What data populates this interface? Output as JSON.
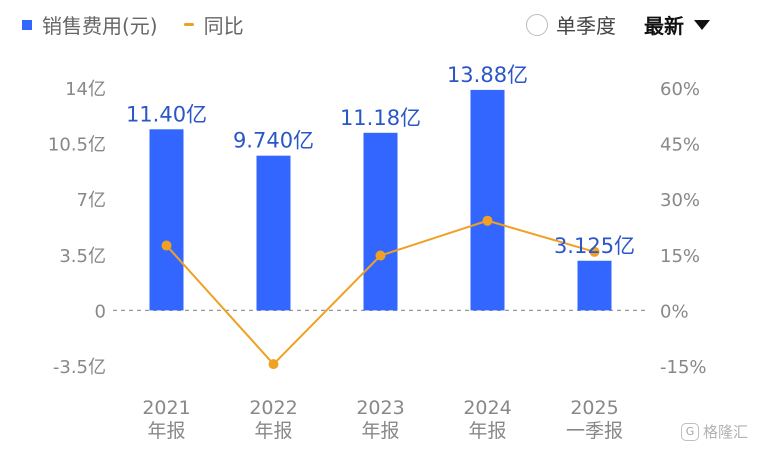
{
  "legend": {
    "bar_label": "销售费用(元)",
    "line_label": "同比"
  },
  "controls": {
    "option_label": "单季度",
    "select_value": "最新"
  },
  "watermark": {
    "logo_char": "G",
    "text": "格隆汇"
  },
  "colors": {
    "bar": "#3366ff",
    "line": "#f0a022",
    "bar_label": "#2a57c7",
    "axis_text": "#888888",
    "zero_line": "#999999"
  },
  "chart_data": {
    "type": "bar",
    "categories": [
      [
        "2021",
        "年报"
      ],
      [
        "2022",
        "年报"
      ],
      [
        "2023",
        "年报"
      ],
      [
        "2024",
        "年报"
      ],
      [
        "2025",
        "一季报"
      ]
    ],
    "series": [
      {
        "name": "销售费用(元)",
        "type": "bar",
        "axis": "left",
        "values": [
          11.4,
          9.74,
          11.18,
          13.88,
          3.125
        ],
        "labels": [
          "11.40亿",
          "9.740亿",
          "11.18亿",
          "13.88亿",
          "3.125亿"
        ]
      },
      {
        "name": "同比",
        "type": "line",
        "axis": "right",
        "values": [
          17.5,
          -14.5,
          14.8,
          24.2,
          15.8
        ]
      }
    ],
    "left_axis": {
      "ticks": [
        14,
        10.5,
        7,
        3.5,
        0,
        -3.5
      ],
      "tick_labels": [
        "14亿",
        "10.5亿",
        "7亿",
        "3.5亿",
        "0",
        "-3.5亿"
      ],
      "ylim": [
        -3.5,
        14
      ]
    },
    "right_axis": {
      "ticks": [
        60,
        45,
        30,
        15,
        0,
        -15
      ],
      "tick_labels": [
        "60%",
        "45%",
        "30%",
        "15%",
        "0%",
        "-15%"
      ],
      "ylim": [
        -15,
        60
      ]
    },
    "zero_line": "dashed",
    "grid": false,
    "legend_position": "top-left"
  }
}
